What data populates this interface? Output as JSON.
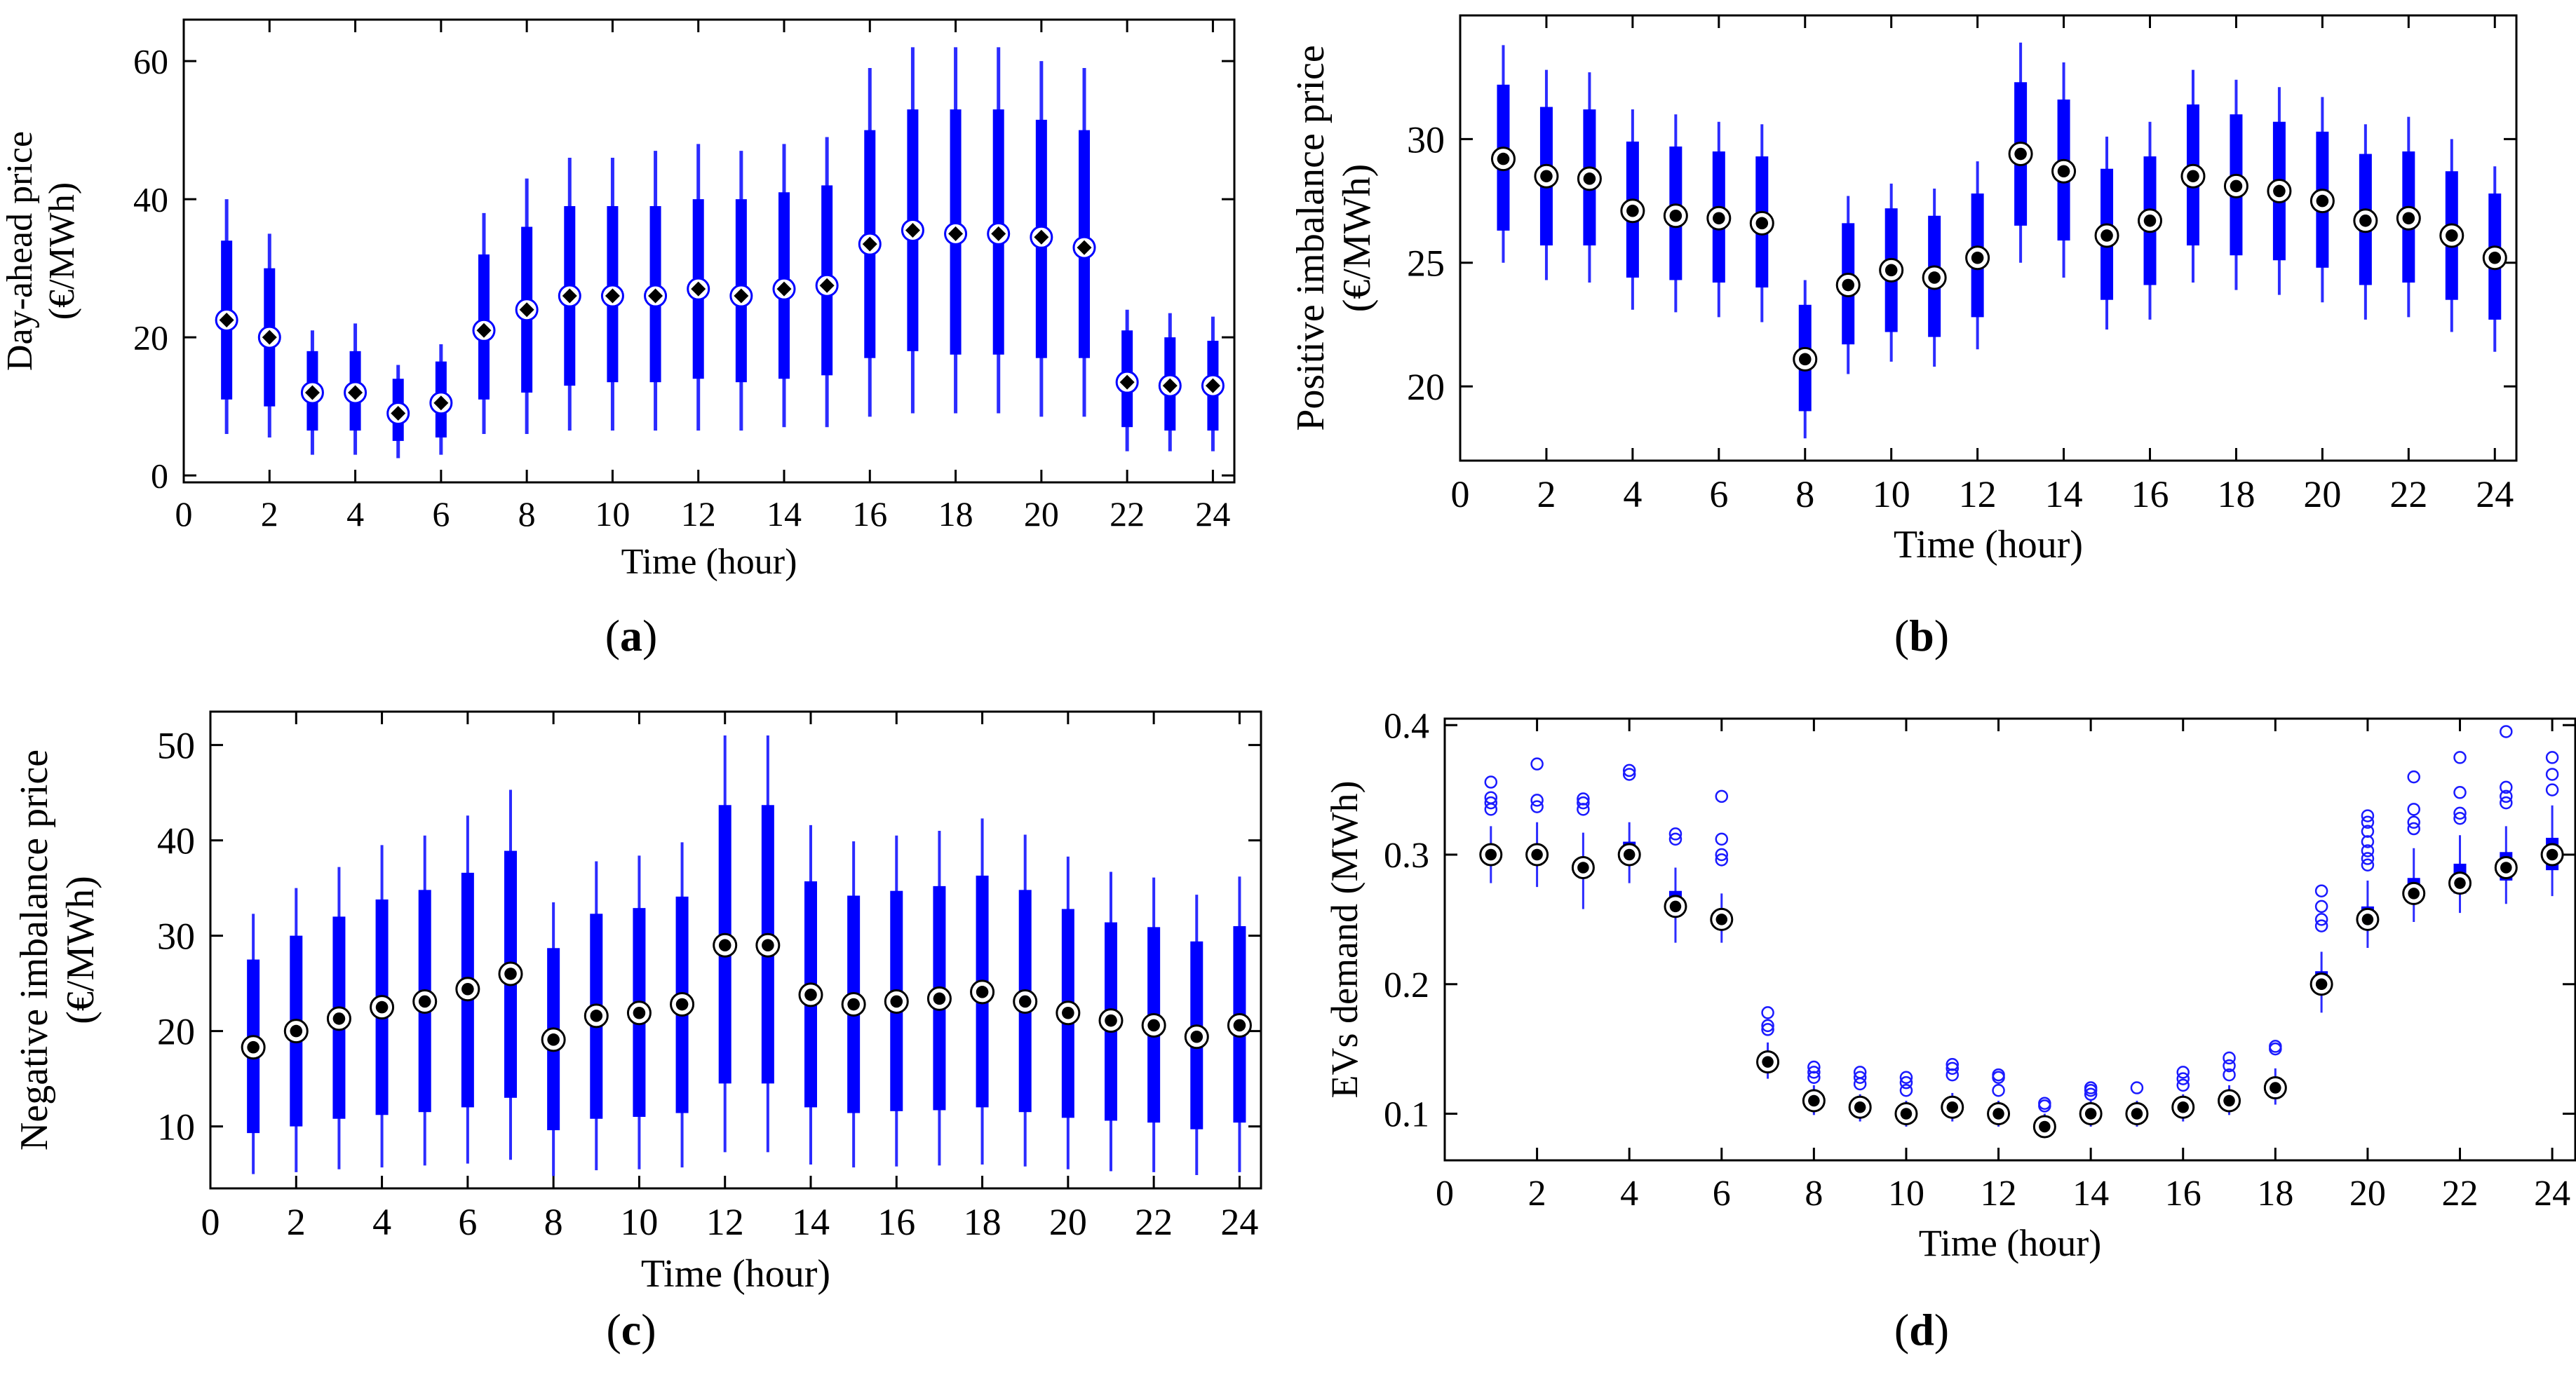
{
  "captions": {
    "a": "a",
    "b": "b",
    "c": "c",
    "d": "d"
  },
  "colors": {
    "box": "#0000ff",
    "whisker": "#2b2bff",
    "median_fill": "#000000",
    "outlier": "#1a1aff"
  },
  "chart_data": [
    {
      "id": "a",
      "type": "box",
      "title": "",
      "xlabel": "Time (hour)",
      "ylabel_lines": [
        "Day-ahead price",
        "(€/MWh)"
      ],
      "xlim": [
        0,
        24.5
      ],
      "ylim": [
        -1,
        66
      ],
      "xticks": [
        0,
        2,
        4,
        6,
        8,
        10,
        12,
        14,
        16,
        18,
        20,
        22,
        24
      ],
      "yticks": [
        0,
        20,
        40,
        60
      ],
      "boxes": [
        {
          "x": 1,
          "low": 6,
          "q1": 11,
          "median": 22.5,
          "q3": 34,
          "high": 40
        },
        {
          "x": 2,
          "low": 5.5,
          "q1": 10,
          "median": 20,
          "q3": 30,
          "high": 35
        },
        {
          "x": 3,
          "low": 3,
          "q1": 6.5,
          "median": 12,
          "q3": 18,
          "high": 21
        },
        {
          "x": 4,
          "low": 3,
          "q1": 6.5,
          "median": 12,
          "q3": 18,
          "high": 22
        },
        {
          "x": 5,
          "low": 2.5,
          "q1": 5,
          "median": 9,
          "q3": 14,
          "high": 16
        },
        {
          "x": 6,
          "low": 3,
          "q1": 5.5,
          "median": 10.5,
          "q3": 16.5,
          "high": 19
        },
        {
          "x": 7,
          "low": 6,
          "q1": 11,
          "median": 21,
          "q3": 32,
          "high": 38
        },
        {
          "x": 8,
          "low": 6,
          "q1": 12,
          "median": 24,
          "q3": 36,
          "high": 43
        },
        {
          "x": 9,
          "low": 6.5,
          "q1": 13,
          "median": 26,
          "q3": 39,
          "high": 46
        },
        {
          "x": 10,
          "low": 6.5,
          "q1": 13.5,
          "median": 26,
          "q3": 39,
          "high": 46
        },
        {
          "x": 11,
          "low": 6.5,
          "q1": 13.5,
          "median": 26,
          "q3": 39,
          "high": 47
        },
        {
          "x": 12,
          "low": 6.5,
          "q1": 14,
          "median": 27,
          "q3": 40,
          "high": 48
        },
        {
          "x": 13,
          "low": 6.5,
          "q1": 13.5,
          "median": 26,
          "q3": 40,
          "high": 47
        },
        {
          "x": 14,
          "low": 7,
          "q1": 14,
          "median": 27,
          "q3": 41,
          "high": 48
        },
        {
          "x": 15,
          "low": 7,
          "q1": 14.5,
          "median": 27.5,
          "q3": 42,
          "high": 49
        },
        {
          "x": 16,
          "low": 8.5,
          "q1": 17,
          "median": 33.5,
          "q3": 50,
          "high": 59
        },
        {
          "x": 17,
          "low": 9,
          "q1": 18,
          "median": 35.5,
          "q3": 53,
          "high": 62
        },
        {
          "x": 18,
          "low": 9,
          "q1": 17.5,
          "median": 35,
          "q3": 53,
          "high": 62
        },
        {
          "x": 19,
          "low": 9,
          "q1": 17.5,
          "median": 35,
          "q3": 53,
          "high": 62
        },
        {
          "x": 20,
          "low": 8.5,
          "q1": 17,
          "median": 34.5,
          "q3": 51.5,
          "high": 60
        },
        {
          "x": 21,
          "low": 8.5,
          "q1": 17,
          "median": 33,
          "q3": 50,
          "high": 59
        },
        {
          "x": 22,
          "low": 3.5,
          "q1": 7,
          "median": 13.5,
          "q3": 21,
          "high": 24
        },
        {
          "x": 23,
          "low": 3.5,
          "q1": 6.5,
          "median": 13,
          "q3": 20,
          "high": 23.5
        },
        {
          "x": 24,
          "low": 3.5,
          "q1": 6.5,
          "median": 13,
          "q3": 19.5,
          "high": 23
        }
      ]
    },
    {
      "id": "b",
      "type": "box",
      "title": "",
      "xlabel": "Time (hour)",
      "ylabel_lines": [
        "Positive imbalance price",
        "(€/MWh)"
      ],
      "xlim": [
        0,
        24.5
      ],
      "ylim": [
        17,
        35
      ],
      "xticks": [
        0,
        2,
        4,
        6,
        8,
        10,
        12,
        14,
        16,
        18,
        20,
        22,
        24
      ],
      "yticks": [
        20,
        25,
        30
      ],
      "boxes": [
        {
          "x": 1,
          "low": 25,
          "q1": 26.3,
          "median": 29.2,
          "q3": 32.2,
          "high": 33.8
        },
        {
          "x": 2,
          "low": 24.3,
          "q1": 25.7,
          "median": 28.5,
          "q3": 31.3,
          "high": 32.8
        },
        {
          "x": 3,
          "low": 24.2,
          "q1": 25.7,
          "median": 28.4,
          "q3": 31.2,
          "high": 32.7
        },
        {
          "x": 4,
          "low": 23.1,
          "q1": 24.4,
          "median": 27.1,
          "q3": 29.9,
          "high": 31.2
        },
        {
          "x": 5,
          "low": 23,
          "q1": 24.3,
          "median": 26.9,
          "q3": 29.7,
          "high": 31
        },
        {
          "x": 6,
          "low": 22.8,
          "q1": 24.2,
          "median": 26.8,
          "q3": 29.5,
          "high": 30.7
        },
        {
          "x": 7,
          "low": 22.6,
          "q1": 24,
          "median": 26.6,
          "q3": 29.3,
          "high": 30.6
        },
        {
          "x": 8,
          "low": 17.9,
          "q1": 19,
          "median": 21.1,
          "q3": 23.3,
          "high": 24.3
        },
        {
          "x": 9,
          "low": 20.5,
          "q1": 21.7,
          "median": 24.1,
          "q3": 26.6,
          "high": 27.7
        },
        {
          "x": 10,
          "low": 21,
          "q1": 22.2,
          "median": 24.7,
          "q3": 27.2,
          "high": 28.2
        },
        {
          "x": 11,
          "low": 20.8,
          "q1": 22,
          "median": 24.4,
          "q3": 26.9,
          "high": 28
        },
        {
          "x": 12,
          "low": 21.5,
          "q1": 22.8,
          "median": 25.2,
          "q3": 27.8,
          "high": 29.1
        },
        {
          "x": 13,
          "low": 25,
          "q1": 26.5,
          "median": 29.4,
          "q3": 32.3,
          "high": 33.9
        },
        {
          "x": 14,
          "low": 24.4,
          "q1": 25.9,
          "median": 28.7,
          "q3": 31.6,
          "high": 33.1
        },
        {
          "x": 15,
          "low": 22.3,
          "q1": 23.5,
          "median": 26.1,
          "q3": 28.8,
          "high": 30.1
        },
        {
          "x": 16,
          "low": 22.7,
          "q1": 24.1,
          "median": 26.7,
          "q3": 29.3,
          "high": 30.7
        },
        {
          "x": 17,
          "low": 24.2,
          "q1": 25.7,
          "median": 28.5,
          "q3": 31.4,
          "high": 32.8
        },
        {
          "x": 18,
          "low": 23.9,
          "q1": 25.3,
          "median": 28.1,
          "q3": 31,
          "high": 32.4
        },
        {
          "x": 19,
          "low": 23.7,
          "q1": 25.1,
          "median": 27.9,
          "q3": 30.7,
          "high": 32.1
        },
        {
          "x": 20,
          "low": 23.4,
          "q1": 24.8,
          "median": 27.5,
          "q3": 30.3,
          "high": 31.7
        },
        {
          "x": 21,
          "low": 22.7,
          "q1": 24.1,
          "median": 26.7,
          "q3": 29.4,
          "high": 30.6
        },
        {
          "x": 22,
          "low": 22.8,
          "q1": 24.2,
          "median": 26.8,
          "q3": 29.5,
          "high": 30.9
        },
        {
          "x": 23,
          "low": 22.2,
          "q1": 23.5,
          "median": 26.1,
          "q3": 28.7,
          "high": 30
        },
        {
          "x": 24,
          "low": 21.4,
          "q1": 22.7,
          "median": 25.2,
          "q3": 27.8,
          "high": 28.9
        }
      ]
    },
    {
      "id": "c",
      "type": "box",
      "title": "",
      "xlabel": "Time (hour)",
      "ylabel_lines": [
        "Negative imbalance price",
        "(€/MWh)"
      ],
      "xlim": [
        0,
        24.5
      ],
      "ylim": [
        3.5,
        53.5
      ],
      "xticks": [
        0,
        2,
        4,
        6,
        8,
        10,
        12,
        14,
        16,
        18,
        20,
        22,
        24
      ],
      "yticks": [
        10,
        20,
        30,
        40,
        50
      ],
      "boxes": [
        {
          "x": 1,
          "low": 5,
          "q1": 9.3,
          "median": 18.3,
          "q3": 27.5,
          "high": 32.3
        },
        {
          "x": 2,
          "low": 5.2,
          "q1": 10,
          "median": 20,
          "q3": 30,
          "high": 35
        },
        {
          "x": 3,
          "low": 5.5,
          "q1": 10.8,
          "median": 21.3,
          "q3": 32,
          "high": 37.2
        },
        {
          "x": 4,
          "low": 5.7,
          "q1": 11.2,
          "median": 22.5,
          "q3": 33.8,
          "high": 39.5
        },
        {
          "x": 5,
          "low": 5.9,
          "q1": 11.5,
          "median": 23.1,
          "q3": 34.8,
          "high": 40.5
        },
        {
          "x": 6,
          "low": 6.1,
          "q1": 12,
          "median": 24.4,
          "q3": 36.6,
          "high": 42.6
        },
        {
          "x": 7,
          "low": 6.5,
          "q1": 13,
          "median": 26,
          "q3": 38.9,
          "high": 45.3
        },
        {
          "x": 8,
          "low": 4.8,
          "q1": 9.6,
          "median": 19.1,
          "q3": 28.7,
          "high": 33.5
        },
        {
          "x": 9,
          "low": 5.4,
          "q1": 10.8,
          "median": 21.6,
          "q3": 32.3,
          "high": 37.8
        },
        {
          "x": 10,
          "low": 5.5,
          "q1": 11,
          "median": 21.9,
          "q3": 32.9,
          "high": 38.4
        },
        {
          "x": 11,
          "low": 5.7,
          "q1": 11.4,
          "median": 22.8,
          "q3": 34.1,
          "high": 39.8
        },
        {
          "x": 12,
          "low": 7.3,
          "q1": 14.5,
          "median": 29,
          "q3": 43.7,
          "high": 51
        },
        {
          "x": 13,
          "low": 7.3,
          "q1": 14.5,
          "median": 29,
          "q3": 43.7,
          "high": 51
        },
        {
          "x": 14,
          "low": 6,
          "q1": 12,
          "median": 23.8,
          "q3": 35.7,
          "high": 41.6
        },
        {
          "x": 15,
          "low": 5.7,
          "q1": 11.4,
          "median": 22.8,
          "q3": 34.2,
          "high": 39.9
        },
        {
          "x": 16,
          "low": 5.8,
          "q1": 11.6,
          "median": 23.1,
          "q3": 34.7,
          "high": 40.5
        },
        {
          "x": 17,
          "low": 5.9,
          "q1": 11.7,
          "median": 23.4,
          "q3": 35.2,
          "high": 41
        },
        {
          "x": 18,
          "low": 6,
          "q1": 12,
          "median": 24.1,
          "q3": 36.3,
          "high": 42.3
        },
        {
          "x": 19,
          "low": 5.8,
          "q1": 11.5,
          "median": 23.1,
          "q3": 34.8,
          "high": 40.6
        },
        {
          "x": 20,
          "low": 5.5,
          "q1": 10.9,
          "median": 21.9,
          "q3": 32.8,
          "high": 38.3
        },
        {
          "x": 21,
          "low": 5.3,
          "q1": 10.6,
          "median": 21.1,
          "q3": 31.4,
          "high": 36.7
        },
        {
          "x": 22,
          "low": 5.2,
          "q1": 10.4,
          "median": 20.6,
          "q3": 30.9,
          "high": 36.1
        },
        {
          "x": 23,
          "low": 4.9,
          "q1": 9.7,
          "median": 19.4,
          "q3": 29.4,
          "high": 34.3
        },
        {
          "x": 24,
          "low": 5.2,
          "q1": 10.4,
          "median": 20.6,
          "q3": 31,
          "high": 36.2
        }
      ]
    },
    {
      "id": "d",
      "type": "box",
      "title": "",
      "xlabel": "Time (hour)",
      "ylabel_lines": [
        "EVs demand (MWh)"
      ],
      "xlim": [
        0,
        24.5
      ],
      "ylim": [
        0.064,
        0.405
      ],
      "xticks": [
        0,
        2,
        4,
        6,
        8,
        10,
        12,
        14,
        16,
        18,
        20,
        22,
        24
      ],
      "yticks": [
        0.1,
        0.2,
        0.3,
        0.4
      ],
      "boxes": [
        {
          "x": 1,
          "low": 0.278,
          "q1": 0.298,
          "median": 0.3,
          "q3": 0.303,
          "high": 0.322,
          "outliers": [
            0.335,
            0.34,
            0.344,
            0.356
          ]
        },
        {
          "x": 2,
          "low": 0.275,
          "q1": 0.297,
          "median": 0.3,
          "q3": 0.303,
          "high": 0.325,
          "outliers": [
            0.337,
            0.342,
            0.37
          ]
        },
        {
          "x": 3,
          "low": 0.258,
          "q1": 0.285,
          "median": 0.29,
          "q3": 0.296,
          "high": 0.317,
          "outliers": [
            0.335,
            0.34,
            0.343
          ]
        },
        {
          "x": 4,
          "low": 0.278,
          "q1": 0.293,
          "median": 0.3,
          "q3": 0.31,
          "high": 0.325,
          "outliers": [
            0.362,
            0.365
          ]
        },
        {
          "x": 5,
          "low": 0.232,
          "q1": 0.253,
          "median": 0.26,
          "q3": 0.272,
          "high": 0.29,
          "outliers": [
            0.312,
            0.316
          ]
        },
        {
          "x": 6,
          "low": 0.232,
          "q1": 0.243,
          "median": 0.25,
          "q3": 0.256,
          "high": 0.27,
          "outliers": [
            0.296,
            0.3,
            0.312,
            0.345
          ]
        },
        {
          "x": 7,
          "low": 0.127,
          "q1": 0.138,
          "median": 0.14,
          "q3": 0.143,
          "high": 0.155,
          "outliers": [
            0.165,
            0.168,
            0.178
          ]
        },
        {
          "x": 8,
          "low": 0.099,
          "q1": 0.107,
          "median": 0.11,
          "q3": 0.112,
          "high": 0.122,
          "outliers": [
            0.128,
            0.132,
            0.136
          ]
        },
        {
          "x": 9,
          "low": 0.094,
          "q1": 0.102,
          "median": 0.105,
          "q3": 0.107,
          "high": 0.115,
          "outliers": [
            0.123,
            0.128,
            0.132
          ]
        },
        {
          "x": 10,
          "low": 0.09,
          "q1": 0.097,
          "median": 0.1,
          "q3": 0.102,
          "high": 0.11,
          "outliers": [
            0.118,
            0.124,
            0.128
          ]
        },
        {
          "x": 11,
          "low": 0.094,
          "q1": 0.102,
          "median": 0.105,
          "q3": 0.107,
          "high": 0.116,
          "outliers": [
            0.13,
            0.135,
            0.138
          ]
        },
        {
          "x": 12,
          "low": 0.09,
          "q1": 0.097,
          "median": 0.1,
          "q3": 0.102,
          "high": 0.11,
          "outliers": [
            0.118,
            0.128,
            0.13
          ]
        },
        {
          "x": 13,
          "low": 0.082,
          "q1": 0.088,
          "median": 0.09,
          "q3": 0.092,
          "high": 0.1,
          "outliers": [
            0.106,
            0.108
          ]
        },
        {
          "x": 14,
          "low": 0.09,
          "q1": 0.098,
          "median": 0.1,
          "q3": 0.102,
          "high": 0.11,
          "outliers": [
            0.115,
            0.118,
            0.12
          ]
        },
        {
          "x": 15,
          "low": 0.09,
          "q1": 0.098,
          "median": 0.1,
          "q3": 0.102,
          "high": 0.11,
          "outliers": [
            0.12
          ]
        },
        {
          "x": 16,
          "low": 0.094,
          "q1": 0.102,
          "median": 0.105,
          "q3": 0.107,
          "high": 0.115,
          "outliers": [
            0.122,
            0.127,
            0.132
          ]
        },
        {
          "x": 17,
          "low": 0.099,
          "q1": 0.107,
          "median": 0.11,
          "q3": 0.113,
          "high": 0.122,
          "outliers": [
            0.13,
            0.137,
            0.143
          ]
        },
        {
          "x": 18,
          "low": 0.107,
          "q1": 0.117,
          "median": 0.12,
          "q3": 0.124,
          "high": 0.135,
          "outliers": [
            0.15,
            0.152
          ]
        },
        {
          "x": 19,
          "low": 0.178,
          "q1": 0.195,
          "median": 0.2,
          "q3": 0.21,
          "high": 0.225,
          "outliers": [
            0.245,
            0.25,
            0.26,
            0.272
          ]
        },
        {
          "x": 20,
          "low": 0.228,
          "q1": 0.243,
          "median": 0.25,
          "q3": 0.26,
          "high": 0.28,
          "outliers": [
            0.292,
            0.297,
            0.303,
            0.31,
            0.318,
            0.325,
            0.33
          ]
        },
        {
          "x": 21,
          "low": 0.248,
          "q1": 0.263,
          "median": 0.27,
          "q3": 0.282,
          "high": 0.305,
          "outliers": [
            0.32,
            0.325,
            0.335,
            0.36
          ]
        },
        {
          "x": 22,
          "low": 0.255,
          "q1": 0.27,
          "median": 0.278,
          "q3": 0.293,
          "high": 0.315,
          "outliers": [
            0.328,
            0.332,
            0.348,
            0.375
          ]
        },
        {
          "x": 23,
          "low": 0.262,
          "q1": 0.28,
          "median": 0.29,
          "q3": 0.302,
          "high": 0.322,
          "outliers": [
            0.34,
            0.345,
            0.352,
            0.395
          ]
        },
        {
          "x": 24,
          "low": 0.268,
          "q1": 0.288,
          "median": 0.3,
          "q3": 0.313,
          "high": 0.338,
          "outliers": [
            0.35,
            0.362,
            0.375
          ]
        }
      ]
    }
  ]
}
